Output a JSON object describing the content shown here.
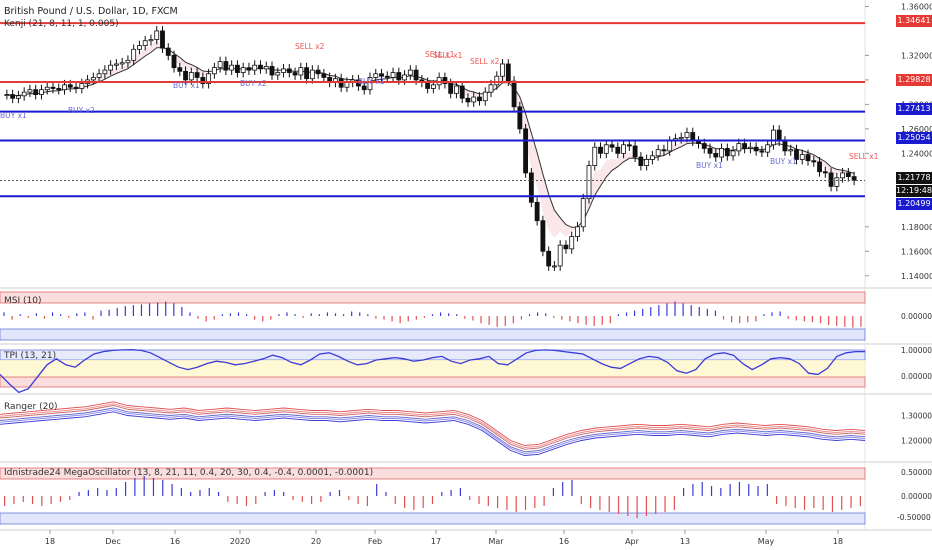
{
  "chart_data": {
    "type": "candlestick",
    "title": "British Pound / U.S. Dollar, 1D, FXCM",
    "indicator_label": "Kenji (21, 8, 11, 1, 0.005)",
    "price_scale": {
      "ticks": [
        "1.36000",
        "1.32000",
        "1.30000",
        "1.28000",
        "1.26000",
        "1.24000",
        "1.18000",
        "1.16000",
        "1.14000"
      ],
      "ylim": [
        1.13,
        1.362
      ]
    },
    "x_ticks": [
      "18",
      "Dec",
      "16",
      "2020",
      "20",
      "Feb",
      "17",
      "Mar",
      "16",
      "Apr",
      "13",
      "May",
      "18"
    ],
    "levels": [
      {
        "value": 1.34641,
        "label": "1.34641",
        "color": "#e53935"
      },
      {
        "value": 1.29828,
        "label": "1.29828",
        "color": "#e53935"
      },
      {
        "value": 1.27413,
        "label": "1.27413",
        "color": "#1a1ad0"
      },
      {
        "value": 1.25054,
        "label": "1.25054",
        "color": "#1a1ad0"
      },
      {
        "value": 1.20499,
        "label": "1.20499",
        "color": "#1a1ad0"
      }
    ],
    "last_price": {
      "value": 1.21778,
      "label": "1.21778",
      "countdown": "12:19:48"
    },
    "signals": [
      "BUY x1",
      "BUY x2",
      "SELL x2",
      "BUY x2",
      "BUY x1",
      "SELL x2",
      "SELL x1",
      "SELL x1",
      "BUY x1",
      "BUY x1",
      "SELL x1"
    ],
    "closes": [
      1.288,
      1.285,
      1.287,
      1.29,
      1.292,
      1.288,
      1.292,
      1.294,
      1.293,
      1.292,
      1.296,
      1.294,
      1.293,
      1.297,
      1.3,
      1.302,
      1.305,
      1.308,
      1.312,
      1.313,
      1.314,
      1.316,
      1.325,
      1.328,
      1.332,
      1.333,
      1.34,
      1.326,
      1.32,
      1.31,
      1.307,
      1.3,
      1.306,
      1.302,
      1.297,
      1.305,
      1.31,
      1.315,
      1.308,
      1.312,
      1.306,
      1.31,
      1.308,
      1.312,
      1.309,
      1.311,
      1.304,
      1.306,
      1.309,
      1.306,
      1.304,
      1.31,
      1.301,
      1.308,
      1.305,
      1.302,
      1.298,
      1.301,
      1.294,
      1.298,
      1.3,
      1.295,
      1.292,
      1.302,
      1.305,
      1.303,
      1.302,
      1.306,
      1.3,
      1.304,
      1.308,
      1.3,
      1.298,
      1.293,
      1.296,
      1.302,
      1.297,
      1.289,
      1.295,
      1.285,
      1.282,
      1.286,
      1.283,
      1.29,
      1.296,
      1.303,
      1.313,
      1.299,
      1.278,
      1.26,
      1.224,
      1.2,
      1.185,
      1.16,
      1.148,
      1.148,
      1.165,
      1.162,
      1.172,
      1.18,
      1.203,
      1.23,
      1.245,
      1.24,
      1.247,
      1.245,
      1.24,
      1.247,
      1.246,
      1.237,
      1.23,
      1.235,
      1.238,
      1.243,
      1.242,
      1.25,
      1.252,
      1.253,
      1.257,
      1.25,
      1.248,
      1.244,
      1.24,
      1.237,
      1.244,
      1.238,
      1.242,
      1.248,
      1.244,
      1.245,
      1.242,
      1.241,
      1.247,
      1.259,
      1.25,
      1.242,
      1.243,
      1.235,
      1.239,
      1.234,
      1.233,
      1.225,
      1.224,
      1.213,
      1.22,
      1.224,
      1.221,
      1.218
    ],
    "msi": {
      "label": "MSI (10)",
      "ticks": [
        "0.00000"
      ],
      "values": [
        0.2,
        -0.2,
        0.1,
        -0.1,
        0.15,
        -0.15,
        0.2,
        0.1,
        -0.1,
        0.15,
        0.2,
        -0.2,
        0.3,
        0.35,
        0.45,
        0.55,
        0.6,
        0.65,
        0.7,
        0.75,
        0.8,
        0.7,
        0.5,
        0.2,
        -0.15,
        -0.3,
        -0.2,
        0.1,
        0.15,
        0.2,
        0.1,
        -0.2,
        -0.3,
        -0.2,
        0.1,
        0.2,
        0.1,
        -0.1,
        0.15,
        0.1,
        0.2,
        0.15,
        0.1,
        0.25,
        0.2,
        0.1,
        -0.15,
        -0.2,
        -0.3,
        -0.4,
        -0.3,
        -0.2,
        -0.1,
        0.1,
        0.2,
        0.15,
        0.1,
        -0.15,
        -0.25,
        -0.4,
        -0.5,
        -0.6,
        -0.55,
        -0.4,
        -0.2,
        0.1,
        0.2,
        0.15,
        -0.1,
        -0.2,
        -0.3,
        -0.4,
        -0.5,
        -0.55,
        -0.5,
        -0.4,
        0.1,
        0.2,
        0.3,
        0.4,
        0.5,
        0.6,
        0.7,
        0.8,
        0.7,
        0.6,
        0.5,
        0.4,
        0.3,
        -0.2,
        -0.35,
        -0.4,
        -0.35,
        -0.3,
        0.1,
        0.2,
        0.25,
        -0.15,
        -0.25,
        -0.3,
        -0.35,
        -0.4,
        -0.5,
        -0.55,
        -0.6,
        -0.65,
        -0.6
      ]
    },
    "tpi": {
      "label": "TPI (13, 21)",
      "ticks": [
        "1.00000",
        "0.00000"
      ],
      "values": [
        -0.1,
        -0.5,
        -0.85,
        -0.7,
        -0.2,
        0.3,
        0.55,
        0.3,
        0.2,
        0.5,
        0.75,
        0.85,
        0.9,
        0.92,
        0.93,
        0.9,
        0.8,
        0.6,
        0.4,
        0.2,
        0.1,
        0.2,
        0.35,
        0.45,
        0.4,
        0.3,
        0.35,
        0.45,
        0.55,
        0.7,
        0.6,
        0.4,
        0.3,
        0.5,
        0.75,
        0.8,
        0.65,
        0.45,
        0.3,
        0.35,
        0.5,
        0.55,
        0.6,
        0.55,
        0.45,
        0.5,
        0.6,
        0.65,
        0.45,
        0.35,
        0.5,
        0.55,
        0.65,
        0.35,
        0.3,
        0.55,
        0.8,
        0.9,
        0.92,
        0.9,
        0.85,
        0.8,
        0.75,
        0.55,
        0.35,
        0.2,
        0.15,
        0.35,
        0.55,
        0.65,
        0.6,
        0.4,
        0.05,
        -0.05,
        0.1,
        0.55,
        0.75,
        0.8,
        0.7,
        0.35,
        0.1,
        0.3,
        0.55,
        0.6,
        0.55,
        0.35,
        -0.05,
        -0.1,
        0.15,
        0.65,
        0.8,
        0.85,
        0.85
      ]
    },
    "ranger": {
      "label": "Ranger (20)",
      "ticks": [
        "1.30000",
        "1.20000"
      ],
      "ylim": [
        1.13,
        1.37
      ],
      "mid": [
        1.285,
        1.29,
        1.295,
        1.3,
        1.305,
        1.31,
        1.315,
        1.325,
        1.335,
        1.32,
        1.315,
        1.31,
        1.305,
        1.31,
        1.3,
        1.305,
        1.31,
        1.305,
        1.3,
        1.305,
        1.31,
        1.305,
        1.3,
        1.3,
        1.295,
        1.3,
        1.305,
        1.3,
        1.3,
        1.295,
        1.29,
        1.295,
        1.3,
        1.285,
        1.26,
        1.22,
        1.18,
        1.16,
        1.165,
        1.185,
        1.205,
        1.22,
        1.23,
        1.235,
        1.24,
        1.245,
        1.24,
        1.24,
        1.245,
        1.24,
        1.235,
        1.245,
        1.25,
        1.245,
        1.24,
        1.245,
        1.24,
        1.235,
        1.225,
        1.22,
        1.225,
        1.22
      ]
    },
    "mega_oscillator": {
      "label": "Idnistrade24 MegaOscillator (13, 8, 21, 11, 0.4, 20, 30, 0.4, -0.4, 0.0001, -0.0001)",
      "ticks": [
        "0.50000",
        "0.00000",
        "-0.50000"
      ],
      "values": [
        -0.25,
        -0.2,
        -0.15,
        -0.2,
        -0.25,
        -0.2,
        -0.15,
        -0.1,
        0.1,
        0.15,
        0.2,
        0.15,
        0.2,
        0.35,
        0.45,
        0.5,
        0.45,
        0.4,
        0.3,
        0.2,
        0.1,
        0.15,
        0.2,
        0.1,
        -0.15,
        -0.2,
        -0.25,
        -0.2,
        0.1,
        0.15,
        0.1,
        -0.1,
        -0.15,
        -0.2,
        -0.15,
        0.1,
        0.15,
        -0.1,
        -0.2,
        -0.25,
        0.3,
        0.1,
        -0.2,
        -0.3,
        -0.35,
        -0.3,
        -0.2,
        0.1,
        0.15,
        0.2,
        -0.1,
        -0.2,
        -0.25,
        -0.3,
        -0.35,
        -0.4,
        -0.35,
        -0.3,
        -0.25,
        0.2,
        0.35,
        0.4,
        -0.2,
        -0.3,
        -0.35,
        -0.4,
        -0.45,
        -0.5,
        -0.55,
        -0.5,
        -0.45,
        -0.4,
        -0.35,
        0.2,
        0.3,
        0.35,
        0.25,
        0.2,
        0.3,
        0.35,
        0.3,
        0.25,
        0.3,
        -0.2,
        -0.25,
        -0.3,
        -0.35,
        -0.3,
        -0.35,
        -0.4,
        -0.35,
        -0.3,
        -0.25
      ]
    }
  }
}
